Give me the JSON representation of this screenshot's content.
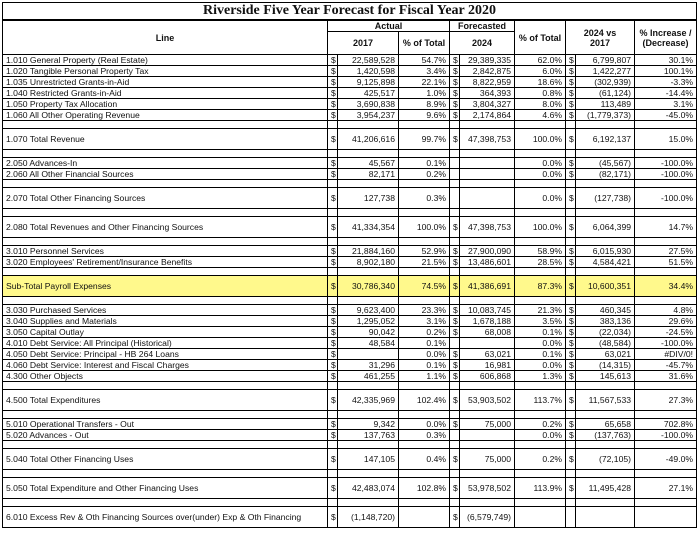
{
  "title": "Riverside Five Year Forecast for Fiscal Year 2020",
  "group_headers": {
    "actual": "Actual",
    "forecasted": "Forecasted"
  },
  "columns": {
    "line": "Line",
    "y2017": "2017",
    "pct_total_1": "% of Total",
    "y2024": "2024",
    "pct_total_2": "% of Total",
    "vs_line1": "2024 vs",
    "vs_line2": "2017",
    "inc_line1": "% Increase /",
    "inc_line2": "(Decrease)"
  },
  "rows": [
    {
      "label": "1.010 General Property (Real Estate)",
      "v2017": "22,589,528",
      "p1": "54.7%",
      "v2024": "29,389,335",
      "p2": "62.0%",
      "diff": "6,799,807",
      "inc": "30.1%"
    },
    {
      "label": "1.020 Tangible Personal Property Tax",
      "v2017": "1,420,598",
      "p1": "3.4%",
      "v2024": "2,842,875",
      "p2": "6.0%",
      "diff": "1,422,277",
      "inc": "100.1%"
    },
    {
      "label": "1.035 Unrestricted Grants-in-Aid",
      "v2017": "9,125,898",
      "p1": "22.1%",
      "v2024": "8,822,959",
      "p2": "18.6%",
      "diff": "(302,939)",
      "inc": "-3.3%"
    },
    {
      "label": "1.040 Restricted Grants-in-Aid",
      "v2017": "425,517",
      "p1": "1.0%",
      "v2024": "364,393",
      "p2": "0.8%",
      "diff": "(61,124)",
      "inc": "-14.4%"
    },
    {
      "label": "1.050 Property Tax Allocation",
      "v2017": "3,690,838",
      "p1": "8.9%",
      "v2024": "3,804,327",
      "p2": "8.0%",
      "diff": "113,489",
      "inc": "3.1%"
    },
    {
      "label": "1.060 All Other Operating Revenue",
      "v2017": "3,954,237",
      "p1": "9.6%",
      "v2024": "2,174,864",
      "p2": "4.6%",
      "diff": "(1,779,373)",
      "inc": "-45.0%"
    },
    {
      "label": "1.070 Total Revenue",
      "v2017": "41,206,616",
      "p1": "99.7%",
      "v2024": "47,398,753",
      "p2": "100.0%",
      "diff": "6,192,137",
      "inc": "15.0%",
      "tall": true
    },
    {
      "label": "2.050 Advances-In",
      "v2017": "45,567",
      "p1": "0.1%",
      "v2024": "",
      "p2": "0.0%",
      "diff": "(45,567)",
      "inc": "-100.0%"
    },
    {
      "label": "2.060 All Other Financial Sources",
      "v2017": "82,171",
      "p1": "0.2%",
      "v2024": "",
      "p2": "0.0%",
      "diff": "(82,171)",
      "inc": "-100.0%"
    },
    {
      "label": "2.070 Total Other Financing Sources",
      "v2017": "127,738",
      "p1": "0.3%",
      "v2024": "",
      "p2": "0.0%",
      "diff": "(127,738)",
      "inc": "-100.0%",
      "tall": true
    },
    {
      "label": "2.080 Total Revenues and Other Financing Sources",
      "v2017": "41,334,354",
      "p1": "100.0%",
      "v2024": "47,398,753",
      "p2": "100.0%",
      "diff": "6,064,399",
      "inc": "14.7%",
      "tall": true
    },
    {
      "label": "3.010 Personnel Services",
      "v2017": "21,884,160",
      "p1": "52.9%",
      "v2024": "27,900,090",
      "p2": "58.9%",
      "diff": "6,015,930",
      "inc": "27.5%"
    },
    {
      "label": "3.020 Employees' Retirement/Insurance Benefits",
      "v2017": "8,902,180",
      "p1": "21.5%",
      "v2024": "13,486,601",
      "p2": "28.5%",
      "diff": "4,584,421",
      "inc": "51.5%"
    },
    {
      "label": "Sub-Total Payroll Expenses",
      "v2017": "30,786,340",
      "p1": "74.5%",
      "v2024": "41,386,691",
      "p2": "87.3%",
      "diff": "10,600,351",
      "inc": "34.4%",
      "tall": true,
      "highlight": true
    },
    {
      "label": "3.030 Purchased Services",
      "v2017": "9,623,400",
      "p1": "23.3%",
      "v2024": "10,083,745",
      "p2": "21.3%",
      "diff": "460,345",
      "inc": "4.8%"
    },
    {
      "label": "3.040 Supplies and Materials",
      "v2017": "1,295,052",
      "p1": "3.1%",
      "v2024": "1,678,188",
      "p2": "3.5%",
      "diff": "383,136",
      "inc": "29.6%"
    },
    {
      "label": "3.050 Capital Outlay",
      "v2017": "90,042",
      "p1": "0.2%",
      "v2024": "68,008",
      "p2": "0.1%",
      "diff": "(22,034)",
      "inc": "-24.5%"
    },
    {
      "label": "4.010 Debt Service: All Principal (Historical)",
      "v2017": "48,584",
      "p1": "0.1%",
      "v2024": "",
      "p2": "0.0%",
      "diff": "(48,584)",
      "inc": "-100.0%"
    },
    {
      "label": "4.050 Debt Service: Principal - HB 264 Loans",
      "v2017": "",
      "p1": "0.0%",
      "v2024": "63,021",
      "p2": "0.1%",
      "diff": "63,021",
      "inc": "#DIV/0!"
    },
    {
      "label": "4.060 Debt Service: Interest and Fiscal Charges",
      "v2017": "31,296",
      "p1": "0.1%",
      "v2024": "16,981",
      "p2": "0.0%",
      "diff": "(14,315)",
      "inc": "-45.7%"
    },
    {
      "label": "4.300 Other Objects",
      "v2017": "461,255",
      "p1": "1.1%",
      "v2024": "606,868",
      "p2": "1.3%",
      "diff": "145,613",
      "inc": "31.6%"
    },
    {
      "label": "4.500 Total Expenditures",
      "v2017": "42,335,969",
      "p1": "102.4%",
      "v2024": "53,903,502",
      "p2": "113.7%",
      "diff": "11,567,533",
      "inc": "27.3%",
      "tall": true
    },
    {
      "label": "5.010 Operational Transfers - Out",
      "v2017": "9,342",
      "p1": "0.0%",
      "v2024": "75,000",
      "p2": "0.2%",
      "diff": "65,658",
      "inc": "702.8%"
    },
    {
      "label": "5.020 Advances - Out",
      "v2017": "137,763",
      "p1": "0.3%",
      "v2024": "",
      "p2": "0.0%",
      "diff": "(137,763)",
      "inc": "-100.0%"
    },
    {
      "label": "5.040 Total Other Financing Uses",
      "v2017": "147,105",
      "p1": "0.4%",
      "v2024": "75,000",
      "p2": "0.2%",
      "diff": "(72,105)",
      "inc": "-49.0%",
      "tall": true
    },
    {
      "label": "5.050 Total Expenditure and Other Financing Uses",
      "v2017": "42,483,074",
      "p1": "102.8%",
      "v2024": "53,978,502",
      "p2": "113.9%",
      "diff": "11,495,428",
      "inc": "27.1%",
      "tall": true
    },
    {
      "label": "6.010 Excess Rev & Oth Financing Sources over(under) Exp & Oth Financing",
      "v2017": "(1,148,720)",
      "p1": "",
      "v2024": "(6,579,749)",
      "p2": "",
      "diff": "",
      "inc": "",
      "tall": true,
      "nodollar": true
    }
  ],
  "spacer_after": [
    5,
    6,
    8,
    9,
    10,
    12,
    13,
    20,
    21,
    23,
    24,
    25
  ],
  "highlight_color": "#fff98c"
}
